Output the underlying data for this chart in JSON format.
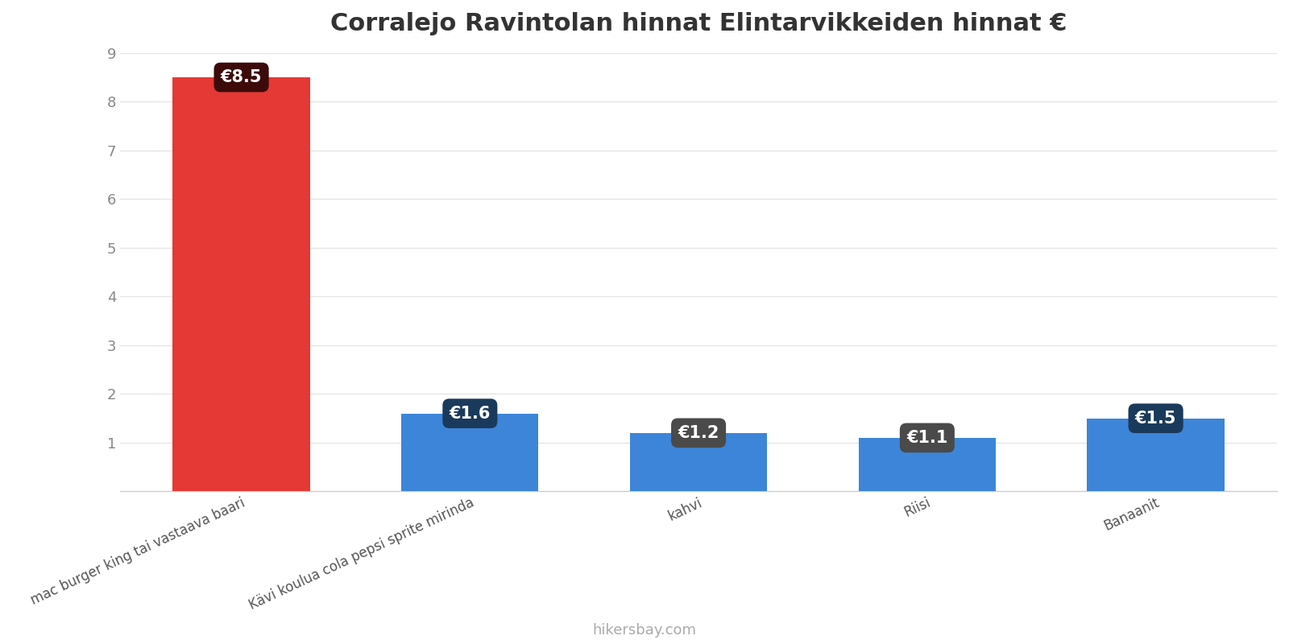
{
  "title": "Corralejo Ravintolan hinnat Elintarvikkeiden hinnat €",
  "categories": [
    "mac burger king tai vastaava baari",
    "Kävi koulua cola pepsi sprite mirinda",
    "kahvi",
    "Riisi",
    "Banaanit"
  ],
  "values": [
    8.5,
    1.6,
    1.2,
    1.1,
    1.5
  ],
  "bar_colors": [
    "#e53935",
    "#3d85d8",
    "#3d85d8",
    "#3d85d8",
    "#3d85d8"
  ],
  "label_bg_colors": [
    "#3d0a0a",
    "#1a3a5c",
    "#4a4a4a",
    "#4a4a4a",
    "#1a3a5c"
  ],
  "labels": [
    "€8.5",
    "€1.6",
    "€1.2",
    "€1.1",
    "€1.5"
  ],
  "ylim": [
    0,
    9
  ],
  "yticks": [
    0,
    1,
    2,
    3,
    4,
    5,
    6,
    7,
    8,
    9
  ],
  "title_fontsize": 22,
  "background_color": "#ffffff",
  "watermark": "hikersbay.com",
  "bar_width": 0.6
}
